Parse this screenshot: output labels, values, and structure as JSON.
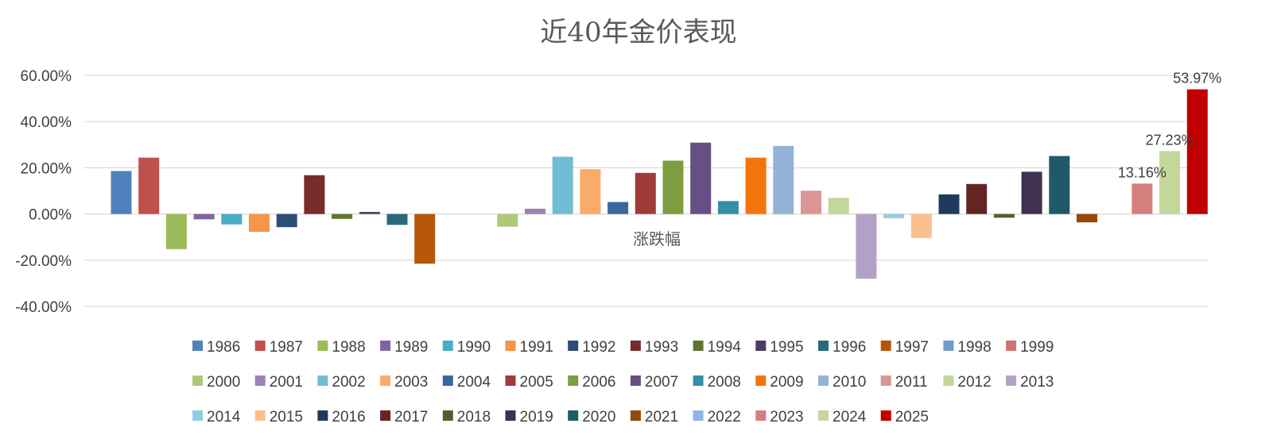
{
  "chart_data": {
    "type": "bar",
    "title": "近40年金价表现",
    "category_label": "涨跌幅",
    "ylim": [
      -0.4,
      0.6
    ],
    "y_ticks": [
      -0.4,
      -0.2,
      0,
      0.2,
      0.4,
      0.6
    ],
    "y_tick_labels": [
      "-40.00%",
      "-20.00%",
      "0.00%",
      "20.00%",
      "40.00%",
      "60.00%"
    ],
    "grid": true,
    "legend_position": "bottom",
    "series": [
      {
        "name": "1986",
        "value": 0.186,
        "color": "#4f81bd"
      },
      {
        "name": "1987",
        "value": 0.244,
        "color": "#c0504d"
      },
      {
        "name": "1988",
        "value": -0.152,
        "color": "#9bbb59"
      },
      {
        "name": "1989",
        "value": -0.023,
        "color": "#8064a2"
      },
      {
        "name": "1990",
        "value": -0.045,
        "color": "#4bacc6"
      },
      {
        "name": "1991",
        "value": -0.077,
        "color": "#f79646"
      },
      {
        "name": "1992",
        "value": -0.057,
        "color": "#2c4d75"
      },
      {
        "name": "1993",
        "value": 0.168,
        "color": "#772c2a"
      },
      {
        "name": "1994",
        "value": -0.021,
        "color": "#5f7530"
      },
      {
        "name": "1995",
        "value": 0.009,
        "color": "#4d3b62"
      },
      {
        "name": "1996",
        "value": -0.047,
        "color": "#276a7c"
      },
      {
        "name": "1997",
        "value": -0.215,
        "color": "#b65708"
      },
      {
        "name": "1998",
        "value": 0.0,
        "color": "#729aca"
      },
      {
        "name": "1999",
        "value": 0.0,
        "color": "#cd7371"
      },
      {
        "name": "2000",
        "value": -0.055,
        "color": "#afc97a"
      },
      {
        "name": "2001",
        "value": 0.023,
        "color": "#9983b5"
      },
      {
        "name": "2002",
        "value": 0.248,
        "color": "#6fbdd1"
      },
      {
        "name": "2003",
        "value": 0.194,
        "color": "#f9ab6b"
      },
      {
        "name": "2004",
        "value": 0.052,
        "color": "#3a679c"
      },
      {
        "name": "2005",
        "value": 0.178,
        "color": "#9e3b38"
      },
      {
        "name": "2006",
        "value": 0.231,
        "color": "#7e9d40"
      },
      {
        "name": "2007",
        "value": 0.309,
        "color": "#664f82"
      },
      {
        "name": "2008",
        "value": 0.056,
        "color": "#358ea6"
      },
      {
        "name": "2009",
        "value": 0.244,
        "color": "#f4740a"
      },
      {
        "name": "2010",
        "value": 0.295,
        "color": "#95b3d7"
      },
      {
        "name": "2011",
        "value": 0.101,
        "color": "#d99694"
      },
      {
        "name": "2012",
        "value": 0.07,
        "color": "#c3d69b"
      },
      {
        "name": "2013",
        "value": -0.28,
        "color": "#b2a1c7"
      },
      {
        "name": "2014",
        "value": -0.018,
        "color": "#93cddd"
      },
      {
        "name": "2015",
        "value": -0.104,
        "color": "#fac090"
      },
      {
        "name": "2016",
        "value": 0.085,
        "color": "#1f3a5f"
      },
      {
        "name": "2017",
        "value": 0.13,
        "color": "#632523"
      },
      {
        "name": "2018",
        "value": -0.016,
        "color": "#4f6228"
      },
      {
        "name": "2019",
        "value": 0.183,
        "color": "#3f3151"
      },
      {
        "name": "2020",
        "value": 0.251,
        "color": "#215968"
      },
      {
        "name": "2021",
        "value": -0.036,
        "color": "#984807"
      },
      {
        "name": "2022",
        "value": 0.0,
        "color": "#8eb4e3"
      },
      {
        "name": "2023",
        "value": 0.1316,
        "color": "#d47f7d",
        "label": "13.16%"
      },
      {
        "name": "2024",
        "value": 0.2723,
        "color": "#c4d79b",
        "label": "27.23%"
      },
      {
        "name": "2025",
        "value": 0.5397,
        "color": "#c00000",
        "label": "53.97%"
      }
    ]
  }
}
